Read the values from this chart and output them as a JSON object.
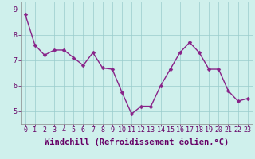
{
  "x": [
    0,
    1,
    2,
    3,
    4,
    5,
    6,
    7,
    8,
    9,
    10,
    11,
    12,
    13,
    14,
    15,
    16,
    17,
    18,
    19,
    20,
    21,
    22,
    23
  ],
  "y": [
    8.8,
    7.6,
    7.2,
    7.4,
    7.4,
    7.1,
    6.8,
    7.3,
    6.7,
    6.65,
    5.75,
    4.9,
    5.2,
    5.2,
    6.0,
    6.65,
    7.3,
    7.7,
    7.3,
    6.65,
    6.65,
    5.8,
    5.4,
    5.5
  ],
  "line_color": "#882288",
  "marker": "D",
  "markersize": 2.5,
  "linewidth": 1.0,
  "background_color": "#cff0ec",
  "grid_color": "#99cccc",
  "xlabel": "Windchill (Refroidissement éolien,°C)",
  "xlabel_fontsize": 7.5,
  "tick_fontsize": 6,
  "ylim": [
    4.5,
    9.3
  ],
  "yticks": [
    5,
    6,
    7,
    8,
    9
  ],
  "xticks": [
    0,
    1,
    2,
    3,
    4,
    5,
    6,
    7,
    8,
    9,
    10,
    11,
    12,
    13,
    14,
    15,
    16,
    17,
    18,
    19,
    20,
    21,
    22,
    23
  ]
}
